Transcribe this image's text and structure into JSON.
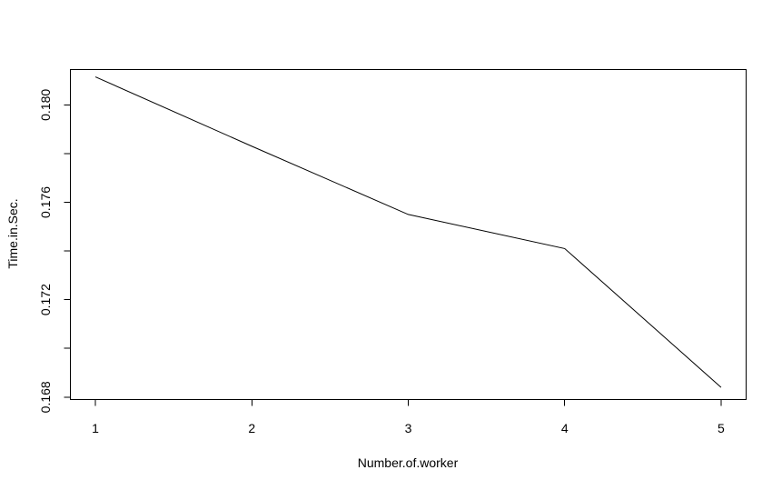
{
  "chart_data": {
    "type": "line",
    "title": "",
    "xlabel": "Number.of.worker",
    "ylabel": "Time.in.Sec.",
    "x": [
      1,
      2,
      3,
      4,
      5
    ],
    "xticks": [
      "1",
      "2",
      "3",
      "4",
      "5"
    ],
    "xlim": [
      0.84,
      5.16
    ],
    "yticks": [
      "0.168",
      "0.172",
      "0.176",
      "0.180"
    ],
    "ylim": [
      0.1679,
      0.18145
    ],
    "grid": false,
    "series": [
      {
        "values": [
          0.18115,
          0.1783,
          0.1755,
          0.1741,
          0.1684
        ]
      }
    ]
  }
}
